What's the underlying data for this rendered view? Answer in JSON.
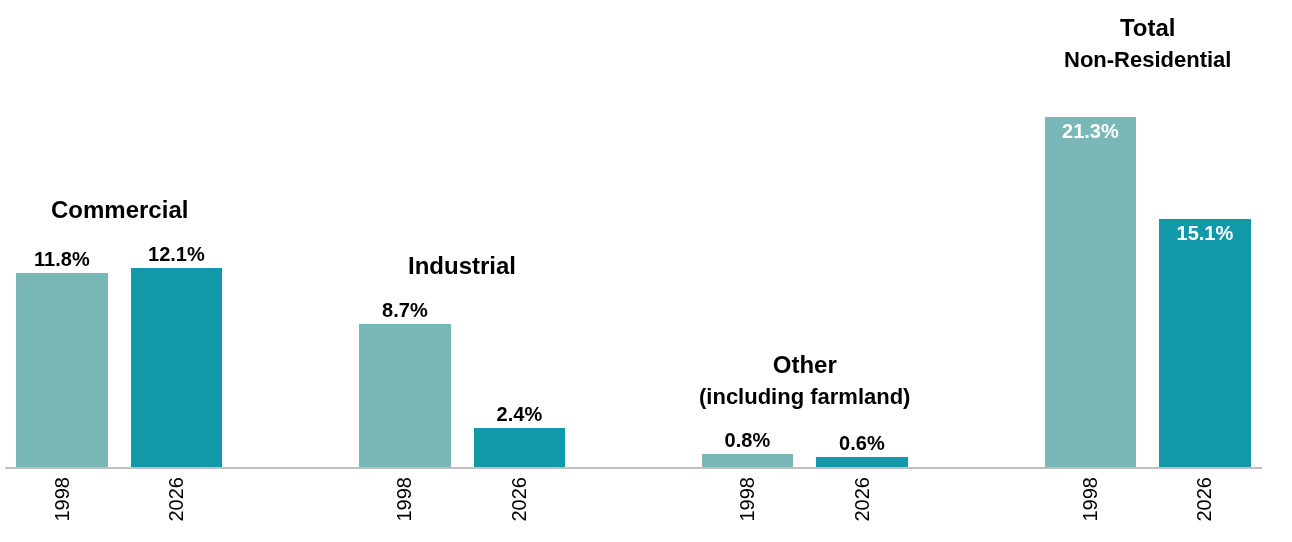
{
  "chart_data": {
    "type": "bar",
    "categories": [
      "1998",
      "2026",
      null,
      "1998",
      "2026",
      null,
      "1998",
      "2026",
      null,
      "1998",
      "2026"
    ],
    "values": [
      11.8,
      12.1,
      null,
      8.7,
      2.4,
      null,
      0.8,
      0.6,
      null,
      21.3,
      15.1
    ],
    "colors": [
      "#7ab8b8",
      "#1199aa",
      null,
      "#7ab8b8",
      "#1199aa",
      null,
      "#7ab8b8",
      "#1199aa",
      null,
      "#7ab8b8",
      "#1199aa"
    ],
    "value_labels": [
      "11.8%",
      "12.1%",
      null,
      "8.7%",
      "2.4%",
      null,
      "0.8%",
      "0.6%",
      null,
      "21.3%",
      "15.1%"
    ],
    "annotations": [
      "Commercial",
      "Industrial",
      "Other\n(including farmland)",
      "Total\nNon-Residential"
    ],
    "ylim": [
      0,
      28.4
    ],
    "tick_labels": "x",
    "legend": false
  }
}
